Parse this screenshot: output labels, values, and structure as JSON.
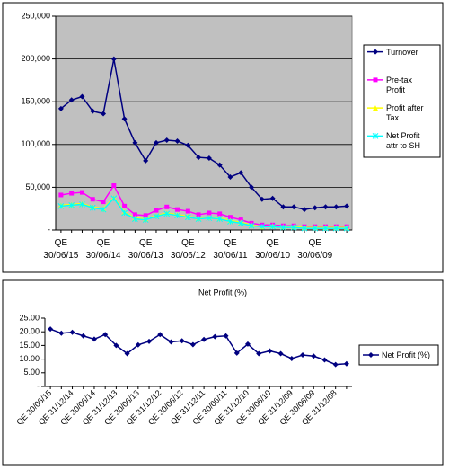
{
  "chart_data": [
    {
      "type": "line",
      "categories": [
        "QE 30/06/15",
        null,
        null,
        null,
        "QE 30/06/14",
        null,
        null,
        null,
        "QE 30/06/13",
        null,
        null,
        null,
        "QE 30/06/12",
        null,
        null,
        null,
        "QE 30/06/11",
        null,
        null,
        null,
        "QE 30/06/10",
        null,
        null,
        null,
        "QE 30/06/09",
        null,
        null,
        null
      ],
      "series": [
        {
          "name": "Turnover",
          "color": "#000080",
          "marker": "diamond",
          "values": [
            142000,
            152000,
            156000,
            139000,
            136000,
            200000,
            130000,
            102000,
            81000,
            102000,
            105000,
            104000,
            99000,
            85000,
            84000,
            76000,
            62000,
            67000,
            50000,
            36000,
            37000,
            27000,
            27000,
            24000,
            26000,
            27000,
            27000,
            28000
          ]
        },
        {
          "name": "Pre-tax Profit",
          "color": "#ff00ff",
          "marker": "square",
          "values": [
            41000,
            43000,
            44000,
            36000,
            33000,
            52000,
            28000,
            18000,
            17000,
            23000,
            27000,
            24000,
            22000,
            18000,
            20000,
            19000,
            15000,
            12000,
            8000,
            6000,
            6000,
            5000,
            5000,
            4000,
            4000,
            4000,
            4000,
            4000
          ]
        },
        {
          "name": "Profit after Tax",
          "color": "#ffff00",
          "marker": "triangle",
          "values": [
            29000,
            30000,
            31000,
            27000,
            25000,
            38000,
            21000,
            14000,
            13000,
            17000,
            20000,
            18000,
            16000,
            14000,
            15000,
            14000,
            11000,
            9000,
            6000,
            4000,
            5000,
            4000,
            4000,
            3000,
            3000,
            3000,
            3000,
            3000
          ]
        },
        {
          "name": "Net Profit attr to SH",
          "color": "#00ffff",
          "marker": "star",
          "values": [
            28000,
            29000,
            30000,
            26000,
            24000,
            37000,
            20000,
            13000,
            12000,
            16000,
            19000,
            17000,
            15000,
            13000,
            14000,
            13000,
            10000,
            8000,
            5000,
            4000,
            4000,
            3000,
            3000,
            2000,
            2000,
            2000,
            2000,
            2000
          ]
        }
      ],
      "ylim": [
        0,
        250000
      ],
      "yticks": [
        {
          "value": 0,
          "label": "-"
        },
        {
          "value": 50000,
          "label": "50,000"
        },
        {
          "value": 100000,
          "label": "100,000"
        },
        {
          "value": 150000,
          "label": "150,000"
        },
        {
          "value": 200000,
          "label": "200,000"
        },
        {
          "value": 250000,
          "label": "250,000"
        }
      ],
      "grid": true,
      "legend": "right"
    },
    {
      "type": "line",
      "title": "Net Profit (%)",
      "categories": [
        "QE 30/06/15",
        null,
        "QE 31/12/14",
        null,
        "QE 30/06/14",
        null,
        "QE 31/12/13",
        null,
        "QE 30/06/13",
        null,
        "QE 31/12/12",
        null,
        "QE 30/06/12",
        null,
        "QE 31/12/11",
        null,
        "QE 30/06/11",
        null,
        "QE 31/12/10",
        null,
        "QE 30/06/10",
        null,
        "QE 31/12/09",
        null,
        "QE 30/06/09",
        null,
        "QE 31/12/08",
        null
      ],
      "series": [
        {
          "name": "Net Profit (%)",
          "color": "#000080",
          "marker": "diamond",
          "values": [
            21,
            19.5,
            19.8,
            18.5,
            17.3,
            19,
            15,
            12,
            15.2,
            16.5,
            19,
            16.3,
            16.7,
            15.3,
            17.2,
            18.2,
            18.5,
            12.2,
            15.5,
            12,
            13,
            12,
            10.2,
            11.5,
            11.1,
            9.7,
            8,
            8.3
          ]
        }
      ],
      "ylim": [
        0,
        25
      ],
      "yticks": [
        {
          "value": 0,
          "label": "-"
        },
        {
          "value": 5,
          "label": "5.00"
        },
        {
          "value": 10,
          "label": "10.00"
        },
        {
          "value": 15,
          "label": "15.00"
        },
        {
          "value": 20,
          "label": "20.00"
        },
        {
          "value": 25,
          "label": "25.00"
        }
      ],
      "grid": false,
      "legend": "right"
    }
  ]
}
